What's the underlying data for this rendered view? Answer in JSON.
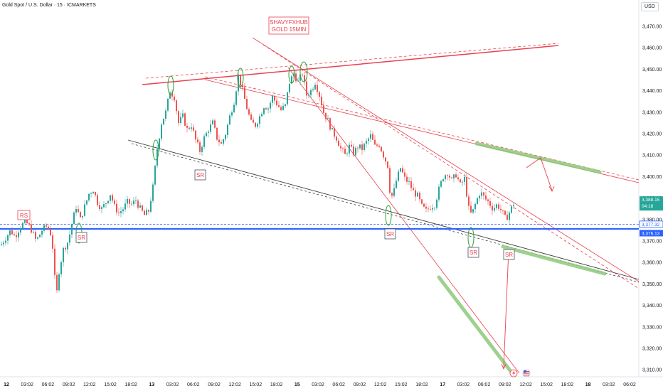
{
  "header": {
    "symbol_title": "Gold Spot / U.S. Dollar · 15 · ICMARKETS",
    "currency": "USD"
  },
  "watermark": {
    "line1": "SHAVYFXHUB",
    "line2": "GOLD 15MIN"
  },
  "labels": {
    "rs": "RS",
    "sr": "SR"
  },
  "colors": {
    "bull": "#26a69a",
    "bear": "#ef5350",
    "resistance": "#e8414e",
    "support_blue": "#2962ff",
    "trend_black": "#3d3d3d",
    "zone_green": "#8cc97a",
    "price_tag": "#26a69a",
    "circle": "#2e9e3a"
  },
  "price_tags": {
    "last_price": "3,388.15",
    "countdown": "04:18",
    "level_upper": "3,377.32",
    "level_lower": "3,376.13"
  },
  "chart_data": {
    "type": "candlestick",
    "symbol": "Gold Spot / U.S. Dollar",
    "timeframe": "15",
    "broker": "ICMARKETS",
    "ylim": [
      3305,
      3478
    ],
    "y_ticks": [
      3470,
      3460,
      3450,
      3440,
      3430,
      3420,
      3410,
      3400,
      3390,
      3380,
      3370,
      3360,
      3350,
      3340,
      3330,
      3320,
      3310
    ],
    "y_tick_labels": [
      "3,470.00",
      "3,460.00",
      "3,450.00",
      "3,440.00",
      "3,430.00",
      "3,420.00",
      "3,410.00",
      "3,400.00",
      "3,390.00",
      "3,380.00",
      "3,370.00",
      "3,360.00",
      "3,350.00",
      "3,340.00",
      "3,330.00",
      "3,320.00",
      "3,310.00"
    ],
    "x_tick_labels": [
      "12",
      "03:02",
      "06:02",
      "09:02",
      "12:02",
      "15:02",
      "18:02",
      "13",
      "03:02",
      "06:02",
      "09:02",
      "12:02",
      "15:02",
      "18:02",
      "15",
      "03:02",
      "06:02",
      "09:02",
      "12:02",
      "15:02",
      "18:02",
      "17",
      "03:02",
      "06:02",
      "09:02",
      "12:02",
      "15:02",
      "18:02",
      "18",
      "03:02",
      "06:02"
    ],
    "x_tick_bold": [
      "12",
      "13",
      "15",
      "17",
      "18"
    ],
    "horizontal_levels": [
      3377.32,
      3376.13
    ],
    "last_price": 3388.15,
    "close_path": [
      [
        0,
        3368
      ],
      [
        8,
        3372
      ],
      [
        14,
        3375
      ],
      [
        20,
        3372
      ],
      [
        28,
        3377
      ],
      [
        35,
        3379
      ],
      [
        42,
        3376
      ],
      [
        50,
        3370
      ],
      [
        58,
        3375
      ],
      [
        65,
        3377
      ],
      [
        72,
        3372
      ],
      [
        78,
        3343
      ],
      [
        82,
        3356
      ],
      [
        88,
        3366
      ],
      [
        95,
        3370
      ],
      [
        100,
        3378
      ],
      [
        106,
        3386
      ],
      [
        112,
        3380
      ],
      [
        118,
        3386
      ],
      [
        124,
        3392
      ],
      [
        130,
        3394
      ],
      [
        136,
        3388
      ],
      [
        142,
        3385
      ],
      [
        148,
        3388
      ],
      [
        154,
        3392
      ],
      [
        160,
        3386
      ],
      [
        166,
        3383
      ],
      [
        172,
        3385
      ],
      [
        178,
        3388
      ],
      [
        184,
        3387
      ],
      [
        190,
        3389
      ],
      [
        196,
        3385
      ],
      [
        202,
        3382
      ],
      [
        208,
        3384
      ],
      [
        214,
        3395
      ],
      [
        220,
        3413
      ],
      [
        226,
        3425
      ],
      [
        232,
        3430
      ],
      [
        238,
        3440
      ],
      [
        244,
        3437
      ],
      [
        250,
        3425
      ],
      [
        256,
        3428
      ],
      [
        262,
        3422
      ],
      [
        268,
        3424
      ],
      [
        274,
        3417
      ],
      [
        280,
        3412
      ],
      [
        286,
        3418
      ],
      [
        292,
        3422
      ],
      [
        298,
        3425
      ],
      [
        304,
        3418
      ],
      [
        310,
        3415
      ],
      [
        316,
        3420
      ],
      [
        322,
        3428
      ],
      [
        328,
        3435
      ],
      [
        334,
        3447
      ],
      [
        340,
        3440
      ],
      [
        346,
        3432
      ],
      [
        352,
        3425
      ],
      [
        358,
        3424
      ],
      [
        364,
        3428
      ],
      [
        370,
        3433
      ],
      [
        376,
        3432
      ],
      [
        382,
        3437
      ],
      [
        388,
        3434
      ],
      [
        394,
        3431
      ],
      [
        400,
        3433
      ],
      [
        406,
        3444
      ],
      [
        412,
        3448
      ],
      [
        418,
        3444
      ],
      [
        424,
        3448
      ],
      [
        430,
        3438
      ],
      [
        436,
        3440
      ],
      [
        442,
        3444
      ],
      [
        448,
        3438
      ],
      [
        454,
        3430
      ],
      [
        460,
        3426
      ],
      [
        466,
        3421
      ],
      [
        472,
        3418
      ],
      [
        478,
        3413
      ],
      [
        484,
        3410
      ],
      [
        490,
        3414
      ],
      [
        496,
        3411
      ],
      [
        502,
        3414
      ],
      [
        508,
        3413
      ],
      [
        514,
        3416
      ],
      [
        520,
        3419
      ],
      [
        526,
        3414
      ],
      [
        532,
        3415
      ],
      [
        538,
        3410
      ],
      [
        544,
        3405
      ],
      [
        548,
        3390
      ],
      [
        552,
        3392
      ],
      [
        556,
        3398
      ],
      [
        562,
        3404
      ],
      [
        568,
        3399
      ],
      [
        574,
        3397
      ],
      [
        580,
        3393
      ],
      [
        586,
        3391
      ],
      [
        592,
        3386
      ],
      [
        598,
        3384
      ],
      [
        604,
        3386
      ],
      [
        610,
        3387
      ],
      [
        616,
        3394
      ],
      [
        622,
        3400
      ],
      [
        628,
        3402
      ],
      [
        634,
        3398
      ],
      [
        640,
        3401
      ],
      [
        646,
        3396
      ],
      [
        652,
        3399
      ],
      [
        658,
        3385
      ],
      [
        662,
        3382
      ],
      [
        668,
        3388
      ],
      [
        674,
        3393
      ],
      [
        680,
        3390
      ],
      [
        686,
        3388
      ],
      [
        692,
        3385
      ],
      [
        698,
        3387
      ],
      [
        704,
        3384
      ],
      [
        710,
        3380
      ],
      [
        716,
        3384
      ],
      [
        722,
        3388
      ]
    ],
    "annotations": [
      "RS",
      "SR",
      "SR",
      "SR",
      "SR",
      "SR"
    ]
  }
}
